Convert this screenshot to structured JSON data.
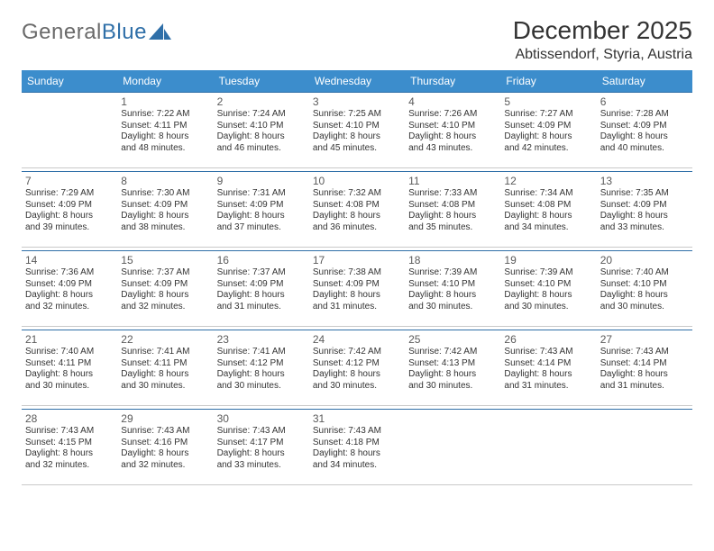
{
  "brand": {
    "part1": "General",
    "part2": "Blue"
  },
  "title": "December 2025",
  "location": "Abtissendorf, Styria, Austria",
  "colors": {
    "header_bg": "#3c8dcc",
    "header_text": "#ffffff",
    "rule": "#2f6fa8",
    "divider": "#c9c9c9",
    "logo_gray": "#6a6a6a",
    "logo_blue": "#2f6fa8"
  },
  "dow": [
    "Sunday",
    "Monday",
    "Tuesday",
    "Wednesday",
    "Thursday",
    "Friday",
    "Saturday"
  ],
  "weeks": [
    [
      null,
      {
        "n": "1",
        "sr": "Sunrise: 7:22 AM",
        "ss": "Sunset: 4:11 PM",
        "d1": "Daylight: 8 hours",
        "d2": "and 48 minutes."
      },
      {
        "n": "2",
        "sr": "Sunrise: 7:24 AM",
        "ss": "Sunset: 4:10 PM",
        "d1": "Daylight: 8 hours",
        "d2": "and 46 minutes."
      },
      {
        "n": "3",
        "sr": "Sunrise: 7:25 AM",
        "ss": "Sunset: 4:10 PM",
        "d1": "Daylight: 8 hours",
        "d2": "and 45 minutes."
      },
      {
        "n": "4",
        "sr": "Sunrise: 7:26 AM",
        "ss": "Sunset: 4:10 PM",
        "d1": "Daylight: 8 hours",
        "d2": "and 43 minutes."
      },
      {
        "n": "5",
        "sr": "Sunrise: 7:27 AM",
        "ss": "Sunset: 4:09 PM",
        "d1": "Daylight: 8 hours",
        "d2": "and 42 minutes."
      },
      {
        "n": "6",
        "sr": "Sunrise: 7:28 AM",
        "ss": "Sunset: 4:09 PM",
        "d1": "Daylight: 8 hours",
        "d2": "and 40 minutes."
      }
    ],
    [
      {
        "n": "7",
        "sr": "Sunrise: 7:29 AM",
        "ss": "Sunset: 4:09 PM",
        "d1": "Daylight: 8 hours",
        "d2": "and 39 minutes."
      },
      {
        "n": "8",
        "sr": "Sunrise: 7:30 AM",
        "ss": "Sunset: 4:09 PM",
        "d1": "Daylight: 8 hours",
        "d2": "and 38 minutes."
      },
      {
        "n": "9",
        "sr": "Sunrise: 7:31 AM",
        "ss": "Sunset: 4:09 PM",
        "d1": "Daylight: 8 hours",
        "d2": "and 37 minutes."
      },
      {
        "n": "10",
        "sr": "Sunrise: 7:32 AM",
        "ss": "Sunset: 4:08 PM",
        "d1": "Daylight: 8 hours",
        "d2": "and 36 minutes."
      },
      {
        "n": "11",
        "sr": "Sunrise: 7:33 AM",
        "ss": "Sunset: 4:08 PM",
        "d1": "Daylight: 8 hours",
        "d2": "and 35 minutes."
      },
      {
        "n": "12",
        "sr": "Sunrise: 7:34 AM",
        "ss": "Sunset: 4:08 PM",
        "d1": "Daylight: 8 hours",
        "d2": "and 34 minutes."
      },
      {
        "n": "13",
        "sr": "Sunrise: 7:35 AM",
        "ss": "Sunset: 4:09 PM",
        "d1": "Daylight: 8 hours",
        "d2": "and 33 minutes."
      }
    ],
    [
      {
        "n": "14",
        "sr": "Sunrise: 7:36 AM",
        "ss": "Sunset: 4:09 PM",
        "d1": "Daylight: 8 hours",
        "d2": "and 32 minutes."
      },
      {
        "n": "15",
        "sr": "Sunrise: 7:37 AM",
        "ss": "Sunset: 4:09 PM",
        "d1": "Daylight: 8 hours",
        "d2": "and 32 minutes."
      },
      {
        "n": "16",
        "sr": "Sunrise: 7:37 AM",
        "ss": "Sunset: 4:09 PM",
        "d1": "Daylight: 8 hours",
        "d2": "and 31 minutes."
      },
      {
        "n": "17",
        "sr": "Sunrise: 7:38 AM",
        "ss": "Sunset: 4:09 PM",
        "d1": "Daylight: 8 hours",
        "d2": "and 31 minutes."
      },
      {
        "n": "18",
        "sr": "Sunrise: 7:39 AM",
        "ss": "Sunset: 4:10 PM",
        "d1": "Daylight: 8 hours",
        "d2": "and 30 minutes."
      },
      {
        "n": "19",
        "sr": "Sunrise: 7:39 AM",
        "ss": "Sunset: 4:10 PM",
        "d1": "Daylight: 8 hours",
        "d2": "and 30 minutes."
      },
      {
        "n": "20",
        "sr": "Sunrise: 7:40 AM",
        "ss": "Sunset: 4:10 PM",
        "d1": "Daylight: 8 hours",
        "d2": "and 30 minutes."
      }
    ],
    [
      {
        "n": "21",
        "sr": "Sunrise: 7:40 AM",
        "ss": "Sunset: 4:11 PM",
        "d1": "Daylight: 8 hours",
        "d2": "and 30 minutes."
      },
      {
        "n": "22",
        "sr": "Sunrise: 7:41 AM",
        "ss": "Sunset: 4:11 PM",
        "d1": "Daylight: 8 hours",
        "d2": "and 30 minutes."
      },
      {
        "n": "23",
        "sr": "Sunrise: 7:41 AM",
        "ss": "Sunset: 4:12 PM",
        "d1": "Daylight: 8 hours",
        "d2": "and 30 minutes."
      },
      {
        "n": "24",
        "sr": "Sunrise: 7:42 AM",
        "ss": "Sunset: 4:12 PM",
        "d1": "Daylight: 8 hours",
        "d2": "and 30 minutes."
      },
      {
        "n": "25",
        "sr": "Sunrise: 7:42 AM",
        "ss": "Sunset: 4:13 PM",
        "d1": "Daylight: 8 hours",
        "d2": "and 30 minutes."
      },
      {
        "n": "26",
        "sr": "Sunrise: 7:43 AM",
        "ss": "Sunset: 4:14 PM",
        "d1": "Daylight: 8 hours",
        "d2": "and 31 minutes."
      },
      {
        "n": "27",
        "sr": "Sunrise: 7:43 AM",
        "ss": "Sunset: 4:14 PM",
        "d1": "Daylight: 8 hours",
        "d2": "and 31 minutes."
      }
    ],
    [
      {
        "n": "28",
        "sr": "Sunrise: 7:43 AM",
        "ss": "Sunset: 4:15 PM",
        "d1": "Daylight: 8 hours",
        "d2": "and 32 minutes."
      },
      {
        "n": "29",
        "sr": "Sunrise: 7:43 AM",
        "ss": "Sunset: 4:16 PM",
        "d1": "Daylight: 8 hours",
        "d2": "and 32 minutes."
      },
      {
        "n": "30",
        "sr": "Sunrise: 7:43 AM",
        "ss": "Sunset: 4:17 PM",
        "d1": "Daylight: 8 hours",
        "d2": "and 33 minutes."
      },
      {
        "n": "31",
        "sr": "Sunrise: 7:43 AM",
        "ss": "Sunset: 4:18 PM",
        "d1": "Daylight: 8 hours",
        "d2": "and 34 minutes."
      },
      null,
      null,
      null
    ]
  ]
}
